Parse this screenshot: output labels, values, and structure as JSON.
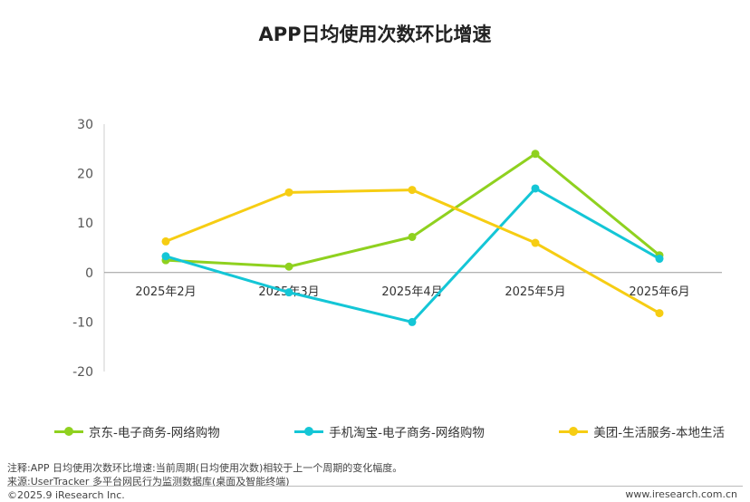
{
  "chart_data": {
    "type": "line",
    "title": "APP日均使用次数环比增速",
    "categories": [
      "2025年2月",
      "2025年3月",
      "2025年4月",
      "2025年5月",
      "2025年6月"
    ],
    "yticks": [
      30,
      20,
      10,
      0,
      -10,
      -20
    ],
    "ylim": [
      -20,
      30
    ],
    "grid": false,
    "legend_position": "bottom",
    "series": [
      {
        "name": "京东-电子商务-网络购物",
        "color": "#8fd11f",
        "values": [
          2.5,
          1.2,
          7.2,
          24.0,
          3.5
        ]
      },
      {
        "name": "手机淘宝-电子商务-网络购物",
        "color": "#14c6d6",
        "values": [
          3.3,
          -4.0,
          -10.0,
          17.0,
          2.8
        ]
      },
      {
        "name": "美团-生活服务-本地生活",
        "color": "#f6cd13",
        "values": [
          6.3,
          16.2,
          16.7,
          6.0,
          -8.2
        ]
      }
    ]
  },
  "footer": {
    "note": "注释:APP 日均使用次数环比增速:当前周期(日均使用次数)相较于上一个周期的变化幅度。",
    "source": "来源:UserTracker 多平台网民行为监测数据库(桌面及智能终端)",
    "copyright": "©2025.9 iResearch Inc.",
    "website": "www.iresearch.com.cn"
  }
}
